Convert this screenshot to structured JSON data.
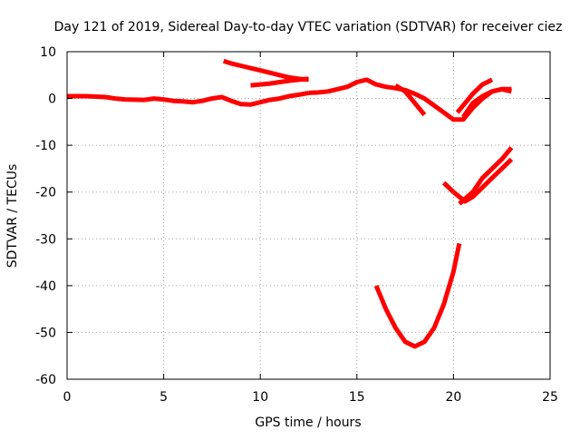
{
  "chart_data": {
    "type": "line",
    "title": "Day 121 of 2019, Sidereal Day-to-day VTEC variation (SDTVAR) for receiver ciez",
    "xlabel": "GPS time / hours",
    "ylabel": "SDTVAR / TECUs",
    "xlim": [
      0,
      25
    ],
    "ylim": [
      -60,
      10
    ],
    "xticks": [
      0,
      5,
      10,
      15,
      20,
      25
    ],
    "yticks": [
      -60,
      -50,
      -40,
      -30,
      -20,
      -10,
      0,
      10
    ],
    "grid": true,
    "legend": "none",
    "color": "#ff0000",
    "series": [
      {
        "x": [
          0,
          1,
          2,
          2.5,
          3,
          4,
          4.5,
          5,
          5.5,
          6,
          6.5,
          7,
          7.5,
          8,
          8.5,
          9,
          9.5,
          10,
          10.5,
          11,
          11.5,
          12,
          12.5
        ],
        "y": [
          0.5,
          0.5,
          0.3,
          0,
          -0.2,
          -0.3,
          0,
          -0.2,
          -0.5,
          -0.6,
          -0.8,
          -0.5,
          0,
          0.3,
          -0.5,
          -1.2,
          -1.3,
          -0.8,
          -0.3,
          0,
          0.5,
          0.8,
          1.2
        ]
      },
      {
        "x": [
          12.5,
          13,
          13.5,
          14,
          14.5,
          15,
          15.5,
          16,
          16.5,
          17,
          17.5,
          18,
          18.5,
          19,
          19.5,
          20,
          20.5,
          21,
          21.5,
          22,
          22.5,
          23
        ],
        "y": [
          1.2,
          1.3,
          1.5,
          2,
          2.5,
          3.5,
          4,
          3,
          2.5,
          2.2,
          1.8,
          1,
          0,
          -1.5,
          -3,
          -4.5,
          -4.5,
          -2,
          0,
          1.5,
          2,
          1.5
        ]
      },
      {
        "x": [
          17,
          17.5,
          18,
          18.5
        ],
        "y": [
          2.8,
          1.5,
          -1,
          -3.5
        ]
      },
      {
        "x": [
          20.5,
          21,
          21.5,
          22,
          22.5,
          23
        ],
        "y": [
          -4,
          -1,
          0.5,
          1.5,
          2,
          2
        ]
      },
      {
        "x": [
          20.2,
          20.6,
          21,
          21.5,
          22
        ],
        "y": [
          -3,
          -1,
          1,
          3,
          4
        ]
      },
      {
        "x": [
          8.1,
          8.5,
          9,
          9.5,
          10,
          10.5,
          11,
          11.5,
          12,
          12.5
        ],
        "y": [
          8,
          7.5,
          7,
          6.5,
          6,
          5.5,
          5,
          4.5,
          4.2,
          4
        ]
      },
      {
        "x": [
          9.5,
          10,
          10.5,
          11,
          11.5,
          12,
          12.5
        ],
        "y": [
          2.8,
          3,
          3.2,
          3.5,
          3.8,
          4,
          4.2
        ]
      },
      {
        "x": [
          19.5,
          20,
          20.3,
          20.6,
          21,
          21.5,
          22,
          22.5,
          23
        ],
        "y": [
          -18,
          -20,
          -21,
          -22,
          -21,
          -19,
          -17,
          -15,
          -13
        ]
      },
      {
        "x": [
          20.3,
          21,
          21.5,
          22,
          22.5,
          23
        ],
        "y": [
          -22.5,
          -20,
          -17,
          -15,
          -13,
          -10.5
        ]
      },
      {
        "x": [
          16,
          16.5,
          17,
          17.5,
          18,
          18.5,
          19,
          19.5,
          20,
          20.3
        ],
        "y": [
          -40,
          -45,
          -49,
          -52,
          -53,
          -52,
          -49,
          -44,
          -37,
          -31
        ]
      }
    ]
  }
}
